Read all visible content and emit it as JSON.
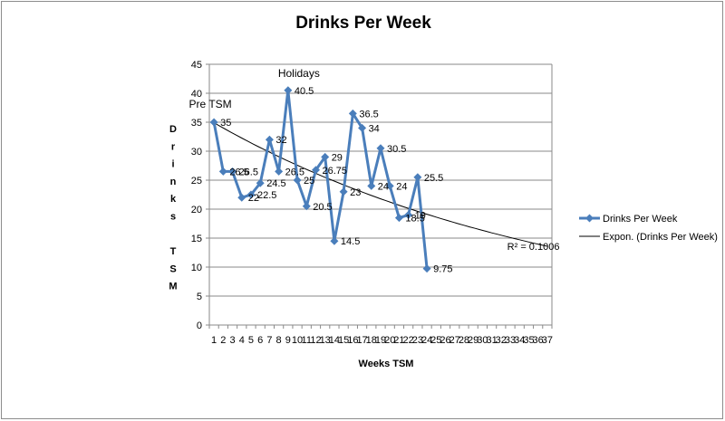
{
  "chart_data": {
    "type": "line",
    "title": "Drinks Per Week",
    "xlabel": "Weeks TSM",
    "ylabel_lines": [
      "D",
      "r",
      "i",
      "n",
      "k",
      "s",
      "",
      "T",
      "S",
      "M"
    ],
    "ylim": [
      0,
      45
    ],
    "ytick_step": 5,
    "x_categories": [
      "1",
      "2",
      "3",
      "4",
      "5",
      "6",
      "7",
      "8",
      "9",
      "10",
      "11",
      "12",
      "13",
      "14",
      "15",
      "16",
      "17",
      "18",
      "19",
      "20",
      "21",
      "22",
      "23",
      "24",
      "25",
      "26",
      "27",
      "28",
      "29",
      "30",
      "31",
      "32",
      "33",
      "34",
      "35",
      "36",
      "37"
    ],
    "series": [
      {
        "name": "Drinks Per Week",
        "color": "#4a7ebb",
        "x": [
          1,
          2,
          3,
          4,
          5,
          6,
          7,
          8,
          9,
          10,
          11,
          12,
          13,
          14,
          15,
          16,
          17,
          18,
          19,
          20,
          21,
          22,
          23,
          24
        ],
        "values": [
          35,
          26.5,
          26.5,
          22,
          22.5,
          24.5,
          32,
          26.5,
          40.5,
          25,
          20.5,
          26.75,
          29,
          14.5,
          23,
          36.5,
          34,
          24,
          30.5,
          24,
          18.5,
          19,
          25.5,
          9.75
        ],
        "labels": [
          "35",
          "26.5",
          "26.5",
          "22",
          "22.5",
          "24.5",
          "32",
          "26.5",
          "40.5",
          "25",
          "20.5",
          "26.75",
          "29",
          "14.5",
          "23",
          "36.5",
          "34",
          "24",
          "30.5",
          "24",
          "18.5",
          "19",
          "25.5",
          "9.75"
        ]
      }
    ],
    "trendline": {
      "name": "Expon. (Drinks Per Week)",
      "type": "exponential",
      "color": "#000000",
      "x_start": 1,
      "x_end": 37,
      "y_start": 34.9,
      "y_end": 13.6,
      "r_squared_label": "R² = 0.1006"
    },
    "annotations": [
      {
        "text": "Pre TSM",
        "x": 1,
        "y": 35
      },
      {
        "text": "Holidays",
        "x": 9,
        "y": 40.5
      }
    ],
    "grid": true,
    "legend_position": "right"
  }
}
